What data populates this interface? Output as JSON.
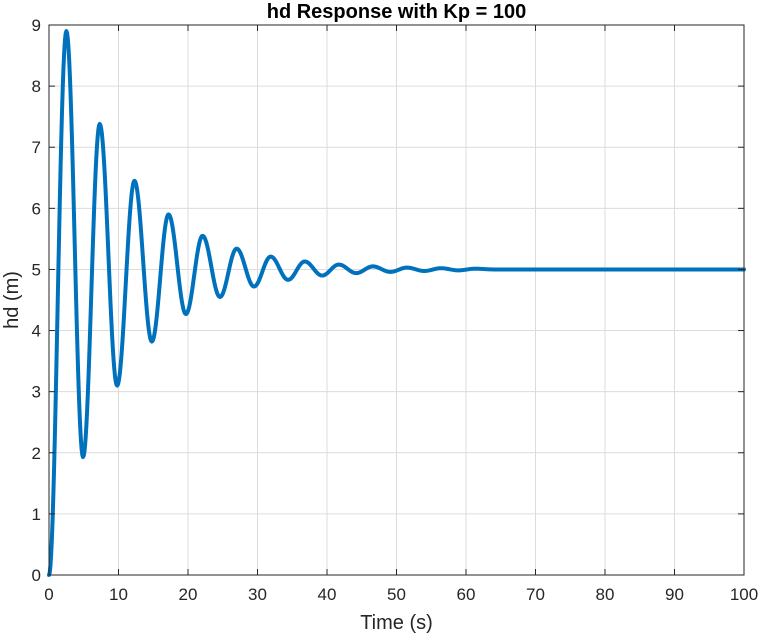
{
  "chart_data": {
    "type": "line",
    "title": "hd Response with Kp = 100",
    "xlabel": "Time (s)",
    "ylabel": "hd (m)",
    "xlim": [
      0,
      100
    ],
    "ylim": [
      0,
      9
    ],
    "xticks": [
      "0",
      "10",
      "20",
      "30",
      "40",
      "50",
      "60",
      "70",
      "80",
      "90",
      "100"
    ],
    "yticks": [
      "0",
      "1",
      "2",
      "3",
      "4",
      "5",
      "6",
      "7",
      "8",
      "9"
    ],
    "grid": true,
    "series": [
      {
        "color": "#0072BD",
        "points": [
          [
            0,
            0
          ],
          [
            2.5,
            8.9
          ],
          [
            4.9,
            1.93
          ],
          [
            7.3,
            7.38
          ],
          [
            9.8,
            3.1
          ],
          [
            12.3,
            6.45
          ],
          [
            14.8,
            3.82
          ],
          [
            17.2,
            5.9
          ],
          [
            19.7,
            4.27
          ],
          [
            22.1,
            5.55
          ],
          [
            24.6,
            4.55
          ],
          [
            27.0,
            5.34
          ],
          [
            29.5,
            4.72
          ],
          [
            31.9,
            5.21
          ],
          [
            34.4,
            4.83
          ],
          [
            36.8,
            5.13
          ],
          [
            39.3,
            4.9
          ],
          [
            41.7,
            5.08
          ],
          [
            44.2,
            4.94
          ],
          [
            46.6,
            5.05
          ],
          [
            49.1,
            4.96
          ],
          [
            51.5,
            5.03
          ],
          [
            54.0,
            4.975
          ],
          [
            56.4,
            5.02
          ],
          [
            58.9,
            4.985
          ],
          [
            61.3,
            5.012
          ],
          [
            64,
            5.0
          ],
          [
            100,
            5.0
          ]
        ]
      }
    ]
  }
}
